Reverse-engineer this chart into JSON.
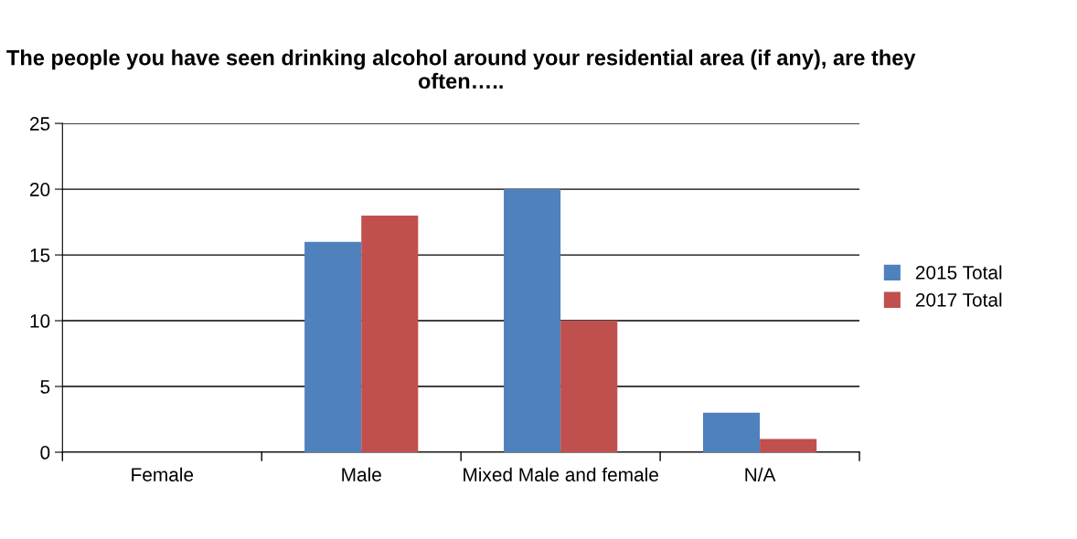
{
  "chart_data": {
    "type": "bar",
    "title": "The people you have seen drinking alcohol around your residential area (if any), are they often…..",
    "categories": [
      "Female",
      "Male",
      "Mixed Male and female",
      "N/A"
    ],
    "series": [
      {
        "name": "2015 Total",
        "color": "#4f81bd",
        "values": [
          0,
          16,
          20,
          3
        ]
      },
      {
        "name": "2017 Total",
        "color": "#c0504d",
        "values": [
          0,
          18,
          10,
          1
        ]
      }
    ],
    "ylim": [
      0,
      25
    ],
    "yticks": [
      0,
      5,
      10,
      15,
      20,
      25
    ],
    "grid": "y",
    "legend": "right"
  }
}
